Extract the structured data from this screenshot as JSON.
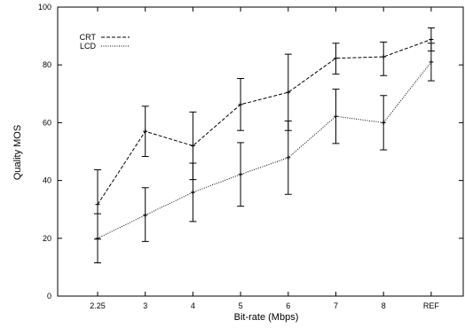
{
  "chart_data": {
    "type": "line",
    "title": "",
    "xlabel": "Bit-rate (Mbps)",
    "ylabel": "Quality MOS",
    "categories": [
      "2.25",
      "3",
      "4",
      "5",
      "6",
      "7",
      "8",
      "REF"
    ],
    "ylim": [
      0,
      100
    ],
    "yticks": [
      0,
      20,
      40,
      60,
      80,
      100
    ],
    "grid": false,
    "legend_position": "top-left",
    "series": [
      {
        "name": "CRT",
        "style": "dashed",
        "color": "#000000",
        "values": [
          31.7,
          57.0,
          52.0,
          66.3,
          70.5,
          82.3,
          82.8,
          88.8
        ],
        "error_low": [
          19.7,
          48.3,
          40.3,
          57.3,
          57.3,
          76.8,
          76.3,
          84.8
        ],
        "error_high": [
          43.7,
          65.7,
          63.7,
          75.3,
          83.7,
          87.5,
          87.9,
          92.8
        ]
      },
      {
        "name": "LCD",
        "style": "dotted",
        "color": "#000000",
        "values": [
          20.0,
          28.0,
          35.9,
          42.1,
          47.9,
          62.2,
          60.0,
          81.0
        ],
        "error_low": [
          11.5,
          18.9,
          25.8,
          31.1,
          35.2,
          52.8,
          50.6,
          74.5
        ],
        "error_high": [
          28.5,
          37.5,
          46.0,
          53.1,
          60.6,
          71.6,
          69.4,
          87.5
        ]
      }
    ]
  }
}
